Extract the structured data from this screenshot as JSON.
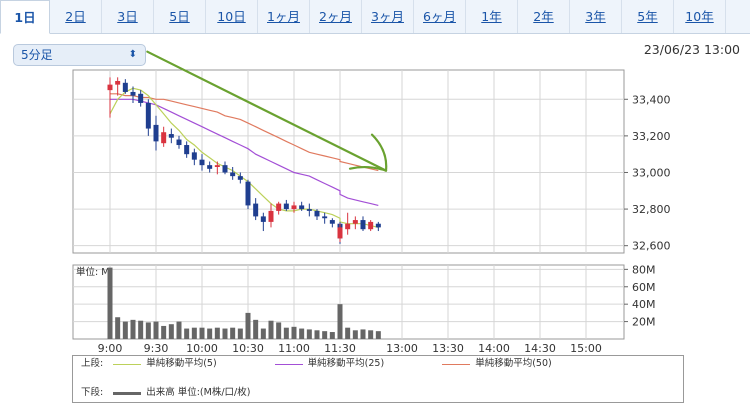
{
  "tabs": [
    {
      "label": "1日",
      "active": true
    },
    {
      "label": "2日"
    },
    {
      "label": "3日"
    },
    {
      "label": "5日"
    },
    {
      "label": "10日"
    },
    {
      "label": "1ヶ月"
    },
    {
      "label": "2ヶ月"
    },
    {
      "label": "3ヶ月"
    },
    {
      "label": "6ヶ月"
    },
    {
      "label": "1年"
    },
    {
      "label": "2年"
    },
    {
      "label": "3年"
    },
    {
      "label": "5年"
    },
    {
      "label": "10年"
    }
  ],
  "interval_selector": {
    "value": "5分足"
  },
  "timestamp": "23/06/23 13:00",
  "colors": {
    "ma5": "#bcd15a",
    "ma25": "#a34fd6",
    "ma50": "#e07a5f",
    "up": "#d9333f",
    "down": "#1f3e8f",
    "volume": "#666666",
    "annotation": "#6aa230"
  },
  "chart_data": [
    {
      "type": "candlestick",
      "x_ticks": [
        "9:00",
        "9:30",
        "10:00",
        "10:30",
        "11:00",
        "11:30",
        "13:00",
        "13:30",
        "14:00",
        "14:30",
        "15:00"
      ],
      "y_ticks": [
        "33,400",
        "33,200",
        "33,000",
        "32,800",
        "32,600"
      ],
      "ylim": [
        32560,
        33560
      ],
      "candles": [
        {
          "t": "9:00",
          "o": 33450,
          "h": 33520,
          "l": 33300,
          "c": 33480
        },
        {
          "t": "9:05",
          "o": 33480,
          "h": 33520,
          "l": 33420,
          "c": 33500
        },
        {
          "t": "9:10",
          "o": 33490,
          "h": 33510,
          "l": 33430,
          "c": 33440
        },
        {
          "t": "9:15",
          "o": 33440,
          "h": 33470,
          "l": 33380,
          "c": 33420
        },
        {
          "t": "9:20",
          "o": 33430,
          "h": 33450,
          "l": 33360,
          "c": 33380
        },
        {
          "t": "9:25",
          "o": 33380,
          "h": 33400,
          "l": 33200,
          "c": 33240
        },
        {
          "t": "9:30",
          "o": 33260,
          "h": 33310,
          "l": 33120,
          "c": 33170
        },
        {
          "t": "9:35",
          "o": 33160,
          "h": 33250,
          "l": 33140,
          "c": 33220
        },
        {
          "t": "9:40",
          "o": 33210,
          "h": 33240,
          "l": 33160,
          "c": 33190
        },
        {
          "t": "9:45",
          "o": 33180,
          "h": 33200,
          "l": 33130,
          "c": 33150
        },
        {
          "t": "9:50",
          "o": 33150,
          "h": 33170,
          "l": 33080,
          "c": 33100
        },
        {
          "t": "9:55",
          "o": 33110,
          "h": 33130,
          "l": 33040,
          "c": 33070
        },
        {
          "t": "10:00",
          "o": 33070,
          "h": 33100,
          "l": 33010,
          "c": 33040
        },
        {
          "t": "10:05",
          "o": 33040,
          "h": 33060,
          "l": 33000,
          "c": 33020
        },
        {
          "t": "10:10",
          "o": 33030,
          "h": 33060,
          "l": 32990,
          "c": 33040
        },
        {
          "t": "10:15",
          "o": 33040,
          "h": 33060,
          "l": 32990,
          "c": 33000
        },
        {
          "t": "10:20",
          "o": 33000,
          "h": 33030,
          "l": 32960,
          "c": 32980
        },
        {
          "t": "10:25",
          "o": 32980,
          "h": 33000,
          "l": 32940,
          "c": 32960
        },
        {
          "t": "10:30",
          "o": 32950,
          "h": 32960,
          "l": 32800,
          "c": 32820
        },
        {
          "t": "10:35",
          "o": 32830,
          "h": 32860,
          "l": 32740,
          "c": 32760
        },
        {
          "t": "10:40",
          "o": 32760,
          "h": 32780,
          "l": 32680,
          "c": 32730
        },
        {
          "t": "10:45",
          "o": 32730,
          "h": 32830,
          "l": 32700,
          "c": 32790
        },
        {
          "t": "10:50",
          "o": 32790,
          "h": 32840,
          "l": 32770,
          "c": 32830
        },
        {
          "t": "10:55",
          "o": 32830,
          "h": 32850,
          "l": 32790,
          "c": 32800
        },
        {
          "t": "11:00",
          "o": 32800,
          "h": 32840,
          "l": 32780,
          "c": 32820
        },
        {
          "t": "11:05",
          "o": 32820,
          "h": 32840,
          "l": 32790,
          "c": 32800
        },
        {
          "t": "11:10",
          "o": 32800,
          "h": 32830,
          "l": 32760,
          "c": 32790
        },
        {
          "t": "11:15",
          "o": 32790,
          "h": 32800,
          "l": 32740,
          "c": 32760
        },
        {
          "t": "11:20",
          "o": 32760,
          "h": 32780,
          "l": 32720,
          "c": 32750
        },
        {
          "t": "11:25",
          "o": 32740,
          "h": 32750,
          "l": 32700,
          "c": 32720
        },
        {
          "t": "11:30",
          "o": 32720,
          "h": 32730,
          "l": 32610,
          "c": 32640
        },
        {
          "t": "12:30",
          "o": 32640,
          "h": 32720,
          "l": 32620,
          "c": 32700
        },
        {
          "t": "12:35",
          "o": 32690,
          "h": 32780,
          "l": 32660,
          "c": 32720
        },
        {
          "t": "12:40",
          "o": 32720,
          "h": 32760,
          "l": 32690,
          "c": 32740
        },
        {
          "t": "12:45",
          "o": 32740,
          "h": 32760,
          "l": 32680,
          "c": 32690
        },
        {
          "t": "12:50",
          "o": 32690,
          "h": 32740,
          "l": 32680,
          "c": 32730
        },
        {
          "t": "12:55",
          "o": 32720,
          "h": 32730,
          "l": 32680,
          "c": 32700
        }
      ],
      "ma5": [
        33320,
        33400,
        33440,
        33460,
        33450,
        33420,
        33370,
        33320,
        33270,
        33230,
        33180,
        33150,
        33110,
        33080,
        33050,
        33030,
        33010,
        32980,
        32950,
        32910,
        32870,
        32830,
        32800,
        32790,
        32790,
        32800,
        32800,
        32790,
        32780,
        32770,
        32750,
        32730,
        32720,
        32720,
        32720,
        32710,
        32700
      ],
      "ma25": [
        33400,
        33400,
        33400,
        33400,
        33390,
        33380,
        33370,
        33350,
        33330,
        33310,
        33290,
        33270,
        33250,
        33230,
        33210,
        33190,
        33170,
        33150,
        33130,
        33100,
        33080,
        33060,
        33040,
        33020,
        33000,
        32990,
        32980,
        32960,
        32940,
        32920,
        32900,
        32880,
        32860,
        32850,
        32840,
        32830,
        32820
      ],
      "ma50": [
        33430,
        33430,
        33420,
        33420,
        33410,
        33410,
        33400,
        33400,
        33390,
        33380,
        33370,
        33360,
        33350,
        33340,
        33330,
        33310,
        33300,
        33290,
        33270,
        33250,
        33230,
        33210,
        33190,
        33170,
        33150,
        33130,
        33110,
        33100,
        33090,
        33080,
        33070,
        33060,
        33050,
        33040,
        33030,
        33020,
        33010
      ],
      "annotation_arrow": {
        "from": {
          "t": "9:40",
          "price": 33660
        },
        "to": {
          "t": "13:00",
          "price": 33010
        }
      }
    },
    {
      "type": "bar",
      "ylabel": "単位: M",
      "y_ticks": [
        "80M",
        "60M",
        "40M",
        "20M"
      ],
      "ylim": [
        0,
        85
      ],
      "values": [
        82,
        25,
        20,
        22,
        21,
        19,
        20,
        15,
        17,
        20,
        12,
        13,
        13,
        12,
        13,
        12,
        13,
        12,
        30,
        22,
        12,
        21,
        19,
        13,
        14,
        12,
        11,
        10,
        9,
        8,
        40,
        14,
        13,
        10,
        11,
        10,
        9
      ]
    }
  ],
  "legend": {
    "upper_label": "上段:",
    "lower_label": "下段:",
    "ma5": "単純移動平均(5)",
    "ma25": "単純移動平均(25)",
    "ma50": "単純移動平均(50)",
    "volume": "出来高 単位:(M株/口/枚)"
  }
}
